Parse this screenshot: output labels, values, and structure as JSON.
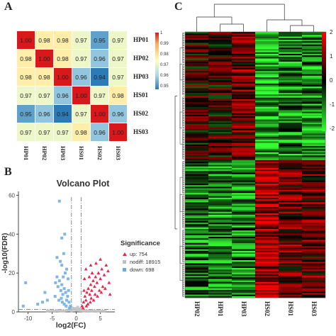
{
  "panels": {
    "a": "A",
    "b": "B",
    "c": "C"
  },
  "correlation": {
    "samples": [
      "HP01",
      "HP02",
      "HP03",
      "HS01",
      "HS02",
      "HS03"
    ],
    "matrix": [
      [
        "1.00",
        "0.98",
        "0.98",
        "0.97",
        "0.95",
        "0.97"
      ],
      [
        "0.98",
        "1.00",
        "0.98",
        "0.97",
        "0.96",
        "0.97"
      ],
      [
        "0.98",
        "0.98",
        "1.00",
        "0.96",
        "0.94",
        "0.97"
      ],
      [
        "0.97",
        "0.97",
        "0.96",
        "1.00",
        "0.97",
        "0.98"
      ],
      [
        "0.95",
        "0.96",
        "0.94",
        "0.97",
        "1.00",
        "0.96"
      ],
      [
        "0.97",
        "0.97",
        "0.97",
        "0.98",
        "0.96",
        "1.00"
      ]
    ],
    "legend_ticks": [
      "1",
      "0.99",
      "0.98",
      "0.97",
      "0.96",
      "0.95"
    ],
    "colors": {
      "high": "#d7191c",
      "mid": "#ffffbf",
      "low": "#2c7bb6"
    }
  },
  "chart_data": {
    "type": "scatter",
    "title": "Volcano Plot",
    "xlabel": "log2(FC)",
    "ylabel": "-log10(FDR)",
    "xlim": [
      -12,
      8
    ],
    "ylim": [
      0,
      62
    ],
    "xticks": [
      "-10",
      "-5",
      "0",
      "5"
    ],
    "xtick_values": [
      -10,
      -5,
      0,
      5
    ],
    "yticks": [
      "0",
      "20",
      "40",
      "60"
    ],
    "ytick_values": [
      0,
      20,
      40,
      60
    ],
    "legend_title": "Significance",
    "series": [
      {
        "name": "up: 754",
        "color": "#e8274b",
        "marker": "triangle",
        "points": [
          [
            1.2,
            3
          ],
          [
            1.5,
            5
          ],
          [
            1.8,
            8
          ],
          [
            2.0,
            6
          ],
          [
            2.2,
            10
          ],
          [
            2.5,
            12
          ],
          [
            2.8,
            9
          ],
          [
            3.0,
            14
          ],
          [
            3.2,
            11
          ],
          [
            3.5,
            16
          ],
          [
            3.8,
            13
          ],
          [
            4.0,
            18
          ],
          [
            4.3,
            15
          ],
          [
            4.6,
            20
          ],
          [
            5.0,
            17
          ],
          [
            5.3,
            22
          ],
          [
            5.8,
            19
          ],
          [
            6.2,
            24
          ],
          [
            6.6,
            21
          ],
          [
            2.4,
            4
          ],
          [
            3.1,
            7
          ],
          [
            3.9,
            9
          ],
          [
            4.8,
            11
          ],
          [
            5.5,
            13
          ],
          [
            1.4,
            2
          ],
          [
            2.1,
            3
          ],
          [
            2.9,
            5
          ],
          [
            3.6,
            6
          ],
          [
            4.4,
            8
          ],
          [
            5.2,
            10
          ],
          [
            6.0,
            12
          ],
          [
            1.6,
            11
          ],
          [
            2.7,
            18
          ],
          [
            3.3,
            20
          ],
          [
            2.0,
            22
          ],
          [
            1.7,
            17
          ],
          [
            4.1,
            25
          ],
          [
            5.0,
            27
          ],
          [
            3.0,
            24
          ],
          [
            6.8,
            15
          ],
          [
            7.0,
            9
          ]
        ]
      },
      {
        "name": "nodiff: 18915",
        "color": "#bfbfbf",
        "marker": "square",
        "points": [
          [
            -6,
            0.5
          ],
          [
            -5,
            0.6
          ],
          [
            -4,
            0.7
          ],
          [
            -3,
            0.5
          ],
          [
            -2,
            0.8
          ],
          [
            -1.5,
            1.0
          ],
          [
            -1,
            0.6
          ],
          [
            -0.5,
            1.2
          ],
          [
            0,
            0.9
          ],
          [
            0.5,
            1.1
          ],
          [
            1,
            0.7
          ],
          [
            1.5,
            0.5
          ],
          [
            2,
            0.6
          ],
          [
            2.5,
            0.4
          ],
          [
            3,
            0.5
          ],
          [
            3.5,
            0.6
          ],
          [
            4,
            0.4
          ],
          [
            4.5,
            0.5
          ],
          [
            5,
            0.3
          ],
          [
            5.5,
            0.4
          ],
          [
            -0.8,
            2.0
          ],
          [
            0.3,
            2.4
          ],
          [
            -0.2,
            1.8
          ],
          [
            0.8,
            1.6
          ],
          [
            -5.5,
            0.3
          ],
          [
            -4.5,
            0.4
          ],
          [
            -3.5,
            0.6
          ],
          [
            -2.5,
            0.5
          ],
          [
            6,
            0.3
          ]
        ]
      },
      {
        "name": "down: 698",
        "color": "#6aa9e0",
        "marker": "square",
        "points": [
          [
            -1.2,
            3
          ],
          [
            -1.5,
            5
          ],
          [
            -1.8,
            8
          ],
          [
            -2.0,
            6
          ],
          [
            -2.2,
            10
          ],
          [
            -2.5,
            12
          ],
          [
            -2.8,
            9
          ],
          [
            -3.0,
            14
          ],
          [
            -3.2,
            11
          ],
          [
            -3.5,
            16
          ],
          [
            -3.8,
            13
          ],
          [
            -4.0,
            18
          ],
          [
            -4.3,
            15
          ],
          [
            -2.5,
            4
          ],
          [
            -3.1,
            7
          ],
          [
            -1.4,
            2
          ],
          [
            -2.1,
            3
          ],
          [
            -2.9,
            5
          ],
          [
            -3.6,
            6
          ],
          [
            -4.4,
            8
          ],
          [
            -1.6,
            11
          ],
          [
            -2.7,
            18
          ],
          [
            -2.3,
            20
          ],
          [
            -2.0,
            22
          ],
          [
            -1.7,
            17
          ],
          [
            -3.0,
            24
          ],
          [
            -2.6,
            30
          ],
          [
            -3.0,
            38
          ],
          [
            -2.4,
            40
          ],
          [
            -3.3,
            26
          ],
          [
            -4.0,
            28
          ],
          [
            -6.0,
            6
          ],
          [
            -7.0,
            5
          ],
          [
            -10.5,
            15
          ],
          [
            -11.0,
            3
          ],
          [
            -3.5,
            57
          ],
          [
            -6.5,
            10
          ],
          [
            -8.0,
            4
          ]
        ]
      }
    ],
    "thresholds": {
      "fc": 1,
      "fdr": 1.3
    }
  },
  "heatmap": {
    "samples": [
      "HP02",
      "HP01",
      "HP03",
      "HS02",
      "HS01",
      "HS03"
    ],
    "legend_ticks": [
      "2",
      "1",
      "0",
      "-1",
      "-2"
    ],
    "colors": {
      "high": "#ff0000",
      "mid": "#000000",
      "low": "#33ff33"
    }
  }
}
